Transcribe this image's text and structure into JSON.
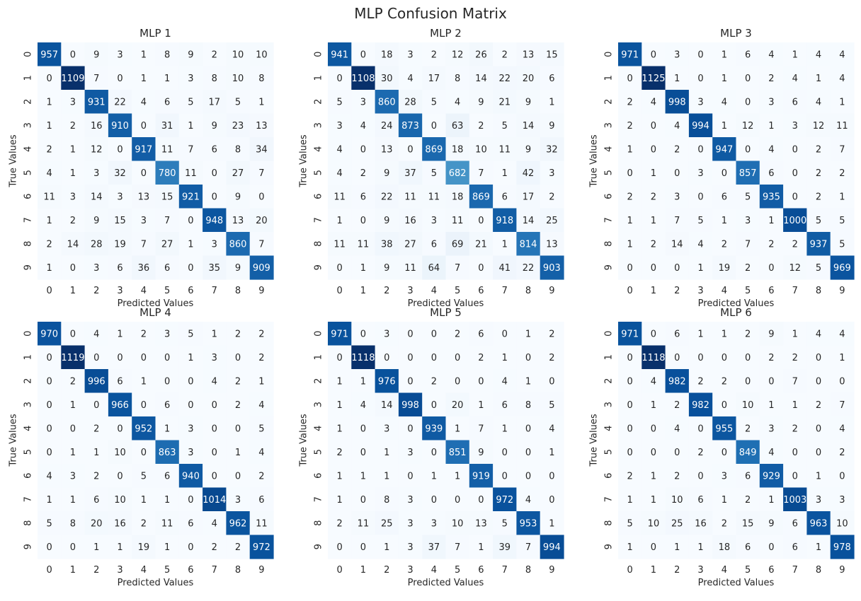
{
  "figure_title": "MLP Confusion Matrix",
  "chart_data": [
    {
      "type": "heatmap",
      "title": "MLP 1",
      "xlabel": "Predicted Values",
      "ylabel": "True Values",
      "x_ticks": [
        "0",
        "1",
        "2",
        "3",
        "4",
        "5",
        "6",
        "7",
        "8",
        "9"
      ],
      "y_ticks": [
        "0",
        "1",
        "2",
        "3",
        "4",
        "5",
        "6",
        "7",
        "8",
        "9"
      ],
      "colormap": "Blues",
      "matrix": [
        [
          957,
          0,
          9,
          3,
          1,
          8,
          9,
          2,
          10,
          10
        ],
        [
          0,
          1109,
          7,
          0,
          1,
          1,
          3,
          8,
          10,
          8
        ],
        [
          1,
          3,
          931,
          22,
          4,
          6,
          5,
          17,
          5,
          1
        ],
        [
          1,
          2,
          16,
          910,
          0,
          31,
          1,
          9,
          23,
          13
        ],
        [
          2,
          1,
          12,
          0,
          917,
          11,
          7,
          6,
          8,
          34
        ],
        [
          4,
          1,
          3,
          32,
          0,
          780,
          11,
          0,
          27,
          7
        ],
        [
          11,
          3,
          14,
          3,
          13,
          15,
          921,
          0,
          9,
          0
        ],
        [
          1,
          2,
          9,
          15,
          3,
          7,
          0,
          948,
          13,
          20
        ],
        [
          2,
          14,
          28,
          19,
          7,
          27,
          1,
          3,
          860,
          7
        ],
        [
          1,
          0,
          3,
          6,
          36,
          6,
          0,
          35,
          9,
          909
        ]
      ]
    },
    {
      "type": "heatmap",
      "title": "MLP 2",
      "xlabel": "Predicted Values",
      "ylabel": "True Values",
      "x_ticks": [
        "0",
        "1",
        "2",
        "3",
        "4",
        "5",
        "6",
        "7",
        "8",
        "9"
      ],
      "y_ticks": [
        "0",
        "1",
        "2",
        "3",
        "4",
        "5",
        "6",
        "7",
        "8",
        "9"
      ],
      "colormap": "Blues",
      "matrix": [
        [
          941,
          0,
          18,
          3,
          2,
          12,
          26,
          2,
          13,
          15
        ],
        [
          0,
          1108,
          30,
          4,
          17,
          8,
          14,
          22,
          20,
          6
        ],
        [
          5,
          3,
          860,
          28,
          5,
          4,
          9,
          21,
          9,
          1
        ],
        [
          3,
          4,
          24,
          873,
          0,
          63,
          2,
          5,
          14,
          9
        ],
        [
          4,
          0,
          13,
          0,
          869,
          18,
          10,
          11,
          9,
          32
        ],
        [
          4,
          2,
          9,
          37,
          5,
          682,
          7,
          1,
          42,
          3
        ],
        [
          11,
          6,
          22,
          11,
          11,
          18,
          869,
          6,
          17,
          2
        ],
        [
          1,
          0,
          9,
          16,
          3,
          11,
          0,
          918,
          14,
          25
        ],
        [
          11,
          11,
          38,
          27,
          6,
          69,
          21,
          1,
          814,
          13
        ],
        [
          0,
          1,
          9,
          11,
          64,
          7,
          0,
          41,
          22,
          903
        ]
      ]
    },
    {
      "type": "heatmap",
      "title": "MLP 3",
      "xlabel": "Predicted Values",
      "ylabel": "True Values",
      "x_ticks": [
        "0",
        "1",
        "2",
        "3",
        "4",
        "5",
        "6",
        "7",
        "8",
        "9"
      ],
      "y_ticks": [
        "0",
        "1",
        "2",
        "3",
        "4",
        "5",
        "6",
        "7",
        "8",
        "9"
      ],
      "colormap": "Blues",
      "matrix": [
        [
          971,
          0,
          3,
          0,
          1,
          6,
          4,
          1,
          4,
          4
        ],
        [
          0,
          1125,
          1,
          0,
          1,
          0,
          2,
          4,
          1,
          4
        ],
        [
          2,
          4,
          998,
          3,
          4,
          0,
          3,
          6,
          4,
          1
        ],
        [
          2,
          0,
          4,
          994,
          1,
          12,
          1,
          3,
          12,
          11
        ],
        [
          1,
          0,
          2,
          0,
          947,
          0,
          4,
          0,
          2,
          7
        ],
        [
          0,
          1,
          0,
          3,
          0,
          857,
          6,
          0,
          2,
          2
        ],
        [
          2,
          2,
          3,
          0,
          6,
          5,
          935,
          0,
          2,
          1
        ],
        [
          1,
          1,
          7,
          5,
          1,
          3,
          1,
          1000,
          5,
          5
        ],
        [
          1,
          2,
          14,
          4,
          2,
          7,
          2,
          2,
          937,
          5
        ],
        [
          0,
          0,
          0,
          1,
          19,
          2,
          0,
          12,
          5,
          969
        ]
      ]
    },
    {
      "type": "heatmap",
      "title": "MLP 4",
      "xlabel": "Predicted Values",
      "ylabel": "True Values",
      "x_ticks": [
        "0",
        "1",
        "2",
        "3",
        "4",
        "5",
        "6",
        "7",
        "8",
        "9"
      ],
      "y_ticks": [
        "0",
        "1",
        "2",
        "3",
        "4",
        "5",
        "6",
        "7",
        "8",
        "9"
      ],
      "colormap": "Blues",
      "matrix": [
        [
          970,
          0,
          4,
          1,
          2,
          3,
          5,
          1,
          2,
          2
        ],
        [
          0,
          1119,
          0,
          0,
          0,
          0,
          1,
          3,
          0,
          2
        ],
        [
          0,
          2,
          996,
          6,
          1,
          0,
          0,
          4,
          2,
          1
        ],
        [
          0,
          1,
          0,
          966,
          0,
          6,
          0,
          0,
          2,
          4
        ],
        [
          0,
          0,
          2,
          0,
          952,
          1,
          3,
          0,
          0,
          5
        ],
        [
          0,
          1,
          1,
          10,
          0,
          863,
          3,
          0,
          1,
          4
        ],
        [
          4,
          3,
          2,
          0,
          5,
          6,
          940,
          0,
          0,
          2
        ],
        [
          1,
          1,
          6,
          10,
          1,
          1,
          0,
          1014,
          3,
          6
        ],
        [
          5,
          8,
          20,
          16,
          2,
          11,
          6,
          4,
          962,
          11
        ],
        [
          0,
          0,
          1,
          1,
          19,
          1,
          0,
          2,
          2,
          972
        ]
      ]
    },
    {
      "type": "heatmap",
      "title": "MLP 5",
      "xlabel": "Predicted Values",
      "ylabel": "True Values",
      "x_ticks": [
        "0",
        "1",
        "2",
        "3",
        "4",
        "5",
        "6",
        "7",
        "8",
        "9"
      ],
      "y_ticks": [
        "0",
        "1",
        "2",
        "3",
        "4",
        "5",
        "6",
        "7",
        "8",
        "9"
      ],
      "colormap": "Blues",
      "matrix": [
        [
          971,
          0,
          3,
          0,
          0,
          2,
          6,
          0,
          1,
          2
        ],
        [
          0,
          1118,
          0,
          0,
          0,
          0,
          2,
          1,
          0,
          2
        ],
        [
          1,
          1,
          976,
          0,
          2,
          0,
          0,
          4,
          1,
          0
        ],
        [
          1,
          4,
          14,
          998,
          0,
          20,
          1,
          6,
          8,
          5
        ],
        [
          1,
          0,
          3,
          0,
          939,
          1,
          7,
          1,
          0,
          4
        ],
        [
          2,
          0,
          1,
          3,
          0,
          851,
          9,
          0,
          0,
          1
        ],
        [
          1,
          1,
          1,
          0,
          1,
          1,
          919,
          0,
          0,
          0
        ],
        [
          1,
          0,
          8,
          3,
          0,
          0,
          0,
          972,
          4,
          0
        ],
        [
          2,
          11,
          25,
          3,
          3,
          10,
          13,
          5,
          953,
          1
        ],
        [
          0,
          0,
          1,
          3,
          37,
          7,
          1,
          39,
          7,
          994
        ]
      ]
    },
    {
      "type": "heatmap",
      "title": "MLP 6",
      "xlabel": "Predicted Values",
      "ylabel": "True Values",
      "x_ticks": [
        "0",
        "1",
        "2",
        "3",
        "4",
        "5",
        "6",
        "7",
        "8",
        "9"
      ],
      "y_ticks": [
        "0",
        "1",
        "2",
        "3",
        "4",
        "5",
        "6",
        "7",
        "8",
        "9"
      ],
      "colormap": "Blues",
      "matrix": [
        [
          971,
          0,
          6,
          1,
          1,
          2,
          9,
          1,
          4,
          4
        ],
        [
          0,
          1118,
          0,
          0,
          0,
          0,
          2,
          2,
          0,
          1
        ],
        [
          0,
          4,
          982,
          2,
          2,
          0,
          0,
          7,
          0,
          0
        ],
        [
          0,
          1,
          2,
          982,
          0,
          10,
          1,
          1,
          2,
          7
        ],
        [
          0,
          0,
          4,
          0,
          955,
          2,
          3,
          2,
          0,
          4
        ],
        [
          0,
          0,
          0,
          2,
          0,
          849,
          4,
          0,
          0,
          2
        ],
        [
          2,
          1,
          2,
          0,
          3,
          6,
          929,
          0,
          1,
          0
        ],
        [
          1,
          1,
          10,
          6,
          1,
          2,
          1,
          1003,
          3,
          3
        ],
        [
          5,
          10,
          25,
          16,
          2,
          15,
          9,
          6,
          963,
          10
        ],
        [
          1,
          0,
          1,
          1,
          18,
          6,
          0,
          6,
          1,
          978
        ]
      ]
    }
  ]
}
